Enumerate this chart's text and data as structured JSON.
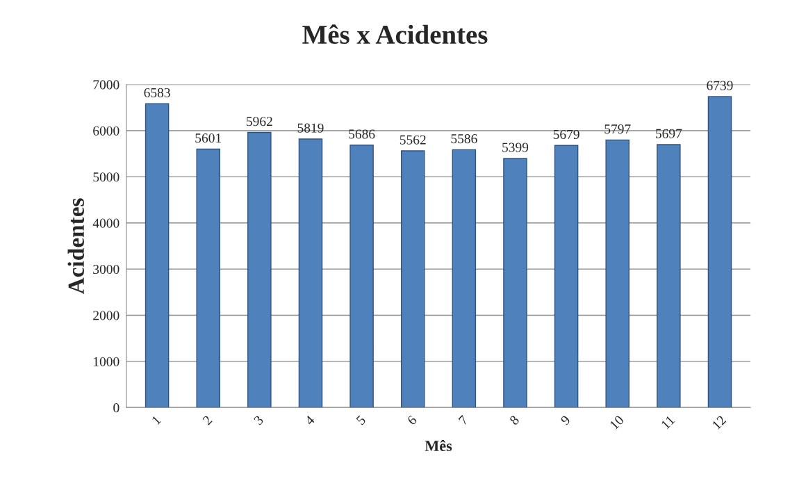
{
  "chart_data": {
    "type": "bar",
    "title": "Mês x Acidentes",
    "xlabel": "Mês",
    "ylabel": "Acidentes",
    "categories": [
      "1",
      "2",
      "3",
      "4",
      "5",
      "6",
      "7",
      "8",
      "9",
      "10",
      "11",
      "12"
    ],
    "values": [
      6583,
      5601,
      5962,
      5819,
      5686,
      5562,
      5586,
      5399,
      5679,
      5797,
      5697,
      6739
    ],
    "color": "#4f81bd",
    "ylim": [
      0,
      7000
    ],
    "yticks": [
      0,
      1000,
      2000,
      3000,
      4000,
      5000,
      6000,
      7000
    ],
    "grid": "y",
    "data_labels": true
  }
}
